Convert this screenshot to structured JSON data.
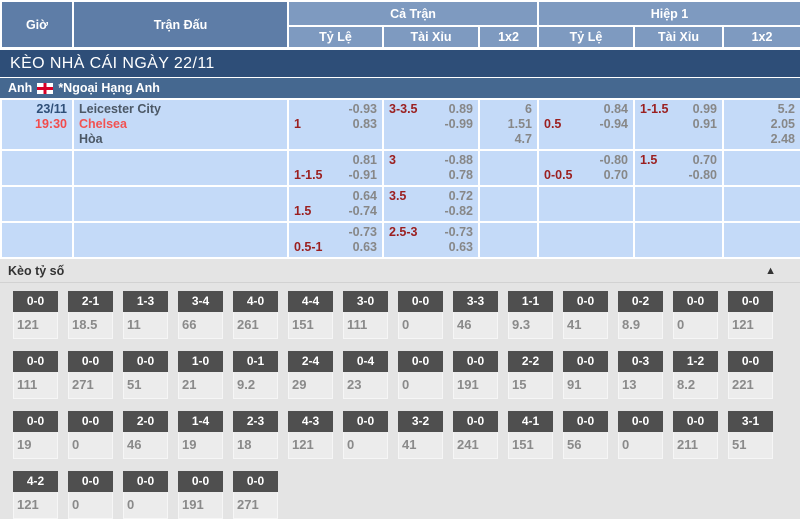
{
  "header": {
    "col_time": "Giờ",
    "col_match": "Trận Đấu",
    "group_full": "Cả Trận",
    "group_half": "Hiệp 1",
    "sub_handicap": "Tỷ Lệ",
    "sub_overunder": "Tài Xỉu",
    "sub_1x2": "1x2"
  },
  "banner": {
    "title": "KÈO NHÀ CÁI NGÀY 22/11"
  },
  "league": {
    "country": "Anh",
    "flag_icon": "england-flag",
    "name": "*Ngoại Hạng Anh"
  },
  "colors": {
    "header_dark_blue": "#5e7da7",
    "header_light_blue": "#7e9ac0",
    "banner_navy": "#2e4e78",
    "league_blue": "#456890",
    "row_light_blue": "#c4daf8",
    "handicap_maroon": "#9b1f1f",
    "odds_gray": "#878787",
    "accent_red": "#f24b4b",
    "score_badge_gray": "#4f4f4f"
  },
  "match": {
    "date": "23/11",
    "time": "19:30",
    "home": "Leicester City",
    "away": "Chelsea",
    "draw_label": "Hòa"
  },
  "odds_rows": [
    {
      "main": true,
      "ft_tyle": {
        "hc": "1",
        "v1": "-0.93",
        "v2": "0.83"
      },
      "ft_taixiu": {
        "hc": "3-3.5",
        "v1": "0.89",
        "v2": "-0.99"
      },
      "ft_1x2": [
        "6",
        "1.51",
        "4.7"
      ],
      "h1_tyle": {
        "hc": "0.5",
        "v1": "0.84",
        "v2": "-0.94"
      },
      "h1_taixiu": {
        "hc": "1-1.5",
        "v1": "0.99",
        "v2": "0.91"
      },
      "h1_1x2": [
        "5.2",
        "2.05",
        "2.48"
      ]
    },
    {
      "main": false,
      "ft_tyle": {
        "hc": "1-1.5",
        "v1": "0.81",
        "v2": "-0.91"
      },
      "ft_taixiu": {
        "hc": "3",
        "v1": "-0.88",
        "v2": "0.78"
      },
      "ft_1x2": [],
      "h1_tyle": {
        "hc": "0-0.5",
        "v1": "-0.80",
        "v2": "0.70"
      },
      "h1_taixiu": {
        "hc": "1.5",
        "v1": "0.70",
        "v2": "-0.80"
      },
      "h1_1x2": []
    },
    {
      "main": false,
      "ft_tyle": {
        "hc": "1.5",
        "v1": "0.64",
        "v2": "-0.74"
      },
      "ft_taixiu": {
        "hc": "3.5",
        "v1": "0.72",
        "v2": "-0.82"
      },
      "ft_1x2": [],
      "h1_tyle": null,
      "h1_taixiu": null,
      "h1_1x2": []
    },
    {
      "main": false,
      "ft_tyle": {
        "hc": "0.5-1",
        "v1": "-0.73",
        "v2": "0.63"
      },
      "ft_taixiu": {
        "hc": "2.5-3",
        "v1": "-0.73",
        "v2": "0.63"
      },
      "ft_1x2": [],
      "h1_tyle": null,
      "h1_taixiu": null,
      "h1_1x2": []
    }
  ],
  "score_section": {
    "title": "Kèo tỷ số",
    "collapse_icon": "▲",
    "rows": [
      [
        {
          "score": "0-0",
          "odds": "121"
        },
        {
          "score": "2-1",
          "odds": "18.5"
        },
        {
          "score": "1-3",
          "odds": "11"
        },
        {
          "score": "3-4",
          "odds": "66"
        },
        {
          "score": "4-0",
          "odds": "261"
        },
        {
          "score": "4-4",
          "odds": "151"
        },
        {
          "score": "3-0",
          "odds": "111"
        },
        {
          "score": "0-0",
          "odds": "0"
        },
        {
          "score": "3-3",
          "odds": "46"
        },
        {
          "score": "1-1",
          "odds": "9.3"
        },
        {
          "score": "0-0",
          "odds": "41"
        },
        {
          "score": "0-2",
          "odds": "8.9"
        },
        {
          "score": "0-0",
          "odds": "0"
        },
        {
          "score": "0-0",
          "odds": "121"
        }
      ],
      [
        {
          "score": "0-0",
          "odds": "111"
        },
        {
          "score": "0-0",
          "odds": "271"
        },
        {
          "score": "0-0",
          "odds": "51"
        },
        {
          "score": "1-0",
          "odds": "21"
        },
        {
          "score": "0-1",
          "odds": "9.2"
        },
        {
          "score": "2-4",
          "odds": "29"
        },
        {
          "score": "0-4",
          "odds": "23"
        },
        {
          "score": "0-0",
          "odds": "0"
        },
        {
          "score": "0-0",
          "odds": "191"
        },
        {
          "score": "2-2",
          "odds": "15"
        },
        {
          "score": "0-0",
          "odds": "91"
        },
        {
          "score": "0-3",
          "odds": "13"
        },
        {
          "score": "1-2",
          "odds": "8.2"
        },
        {
          "score": "0-0",
          "odds": "221"
        }
      ],
      [
        {
          "score": "0-0",
          "odds": "19"
        },
        {
          "score": "0-0",
          "odds": "0"
        },
        {
          "score": "2-0",
          "odds": "46"
        },
        {
          "score": "1-4",
          "odds": "19"
        },
        {
          "score": "2-3",
          "odds": "18"
        },
        {
          "score": "4-3",
          "odds": "121"
        },
        {
          "score": "0-0",
          "odds": "0"
        },
        {
          "score": "3-2",
          "odds": "41"
        },
        {
          "score": "0-0",
          "odds": "241"
        },
        {
          "score": "4-1",
          "odds": "151"
        },
        {
          "score": "0-0",
          "odds": "56"
        },
        {
          "score": "0-0",
          "odds": "0"
        },
        {
          "score": "0-0",
          "odds": "211"
        },
        {
          "score": "3-1",
          "odds": "51"
        }
      ],
      [
        {
          "score": "4-2",
          "odds": "121"
        },
        {
          "score": "0-0",
          "odds": "0"
        },
        {
          "score": "0-0",
          "odds": "0"
        },
        {
          "score": "0-0",
          "odds": "191"
        },
        {
          "score": "0-0",
          "odds": "271"
        }
      ]
    ]
  }
}
